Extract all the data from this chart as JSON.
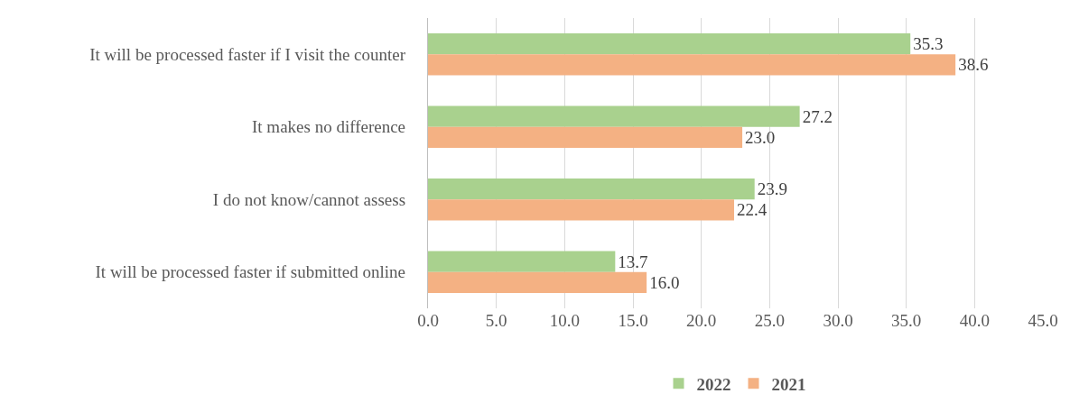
{
  "chart_data": {
    "type": "bar",
    "orientation": "horizontal",
    "categories": [
      "It will be processed faster if I visit the counter",
      "It makes no difference",
      "I do not know/cannot assess",
      "It will be processed faster if submitted online"
    ],
    "series": [
      {
        "name": "2022",
        "color": "#a9d18e",
        "values": [
          35.3,
          27.2,
          23.9,
          13.7
        ],
        "value_labels": [
          "35.3",
          "27.2",
          "23.9",
          "13.7"
        ]
      },
      {
        "name": "2021",
        "color": "#f4b183",
        "values": [
          38.6,
          23.0,
          22.4,
          16.0
        ],
        "value_labels": [
          "38.6",
          "23.0",
          "22.4",
          "16.0"
        ]
      }
    ],
    "xlim": [
      0,
      45
    ],
    "xticks": [
      {
        "value": 0,
        "label": "0.0"
      },
      {
        "value": 5,
        "label": "5.0"
      },
      {
        "value": 10,
        "label": "10.0"
      },
      {
        "value": 15,
        "label": "15.0"
      },
      {
        "value": 20,
        "label": "20.0"
      },
      {
        "value": 25,
        "label": "25.0"
      },
      {
        "value": 30,
        "label": "30.0"
      },
      {
        "value": 35,
        "label": "35.0"
      },
      {
        "value": 40,
        "label": "40.0"
      },
      {
        "value": 45,
        "label": "45.0"
      }
    ],
    "grid": "x",
    "legend": "bottom"
  }
}
